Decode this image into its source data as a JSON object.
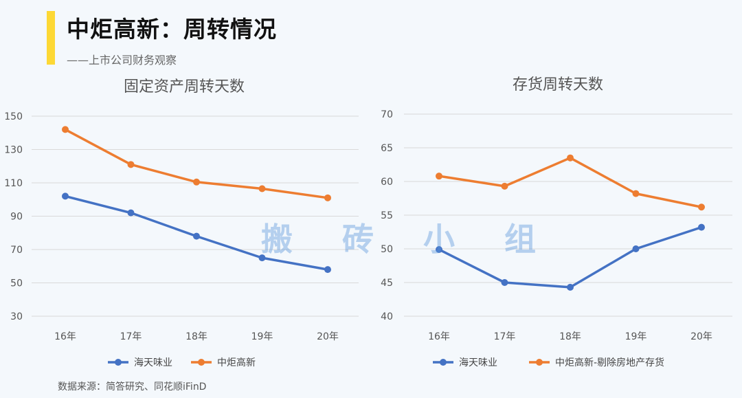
{
  "header": {
    "title": "中炬高新：周转情况",
    "subtitle": "——上市公司财务观察"
  },
  "watermark": "搬 砖 小 组",
  "source": "数据来源：简答研究、同花顺iFinD",
  "colors": {
    "blue": "#4472c4",
    "orange": "#ed7d31",
    "accent": "#fdd835"
  },
  "chart_data": [
    {
      "type": "line",
      "title": "固定资产周转天数",
      "categories": [
        "16年",
        "17年",
        "18年",
        "19年",
        "20年"
      ],
      "ylim": [
        30,
        150
      ],
      "yticks": [
        "150",
        "130",
        "110",
        "90",
        "70",
        "50",
        "30"
      ],
      "legend_position": "bottom",
      "grid": true,
      "series": [
        {
          "name": "海天味业",
          "color": "#4472c4",
          "values": [
            102,
            92,
            78,
            65,
            58
          ]
        },
        {
          "name": "中炬高新",
          "color": "#ed7d31",
          "values": [
            142,
            121,
            110.5,
            106.5,
            101
          ]
        }
      ]
    },
    {
      "type": "line",
      "title": "存货周转天数",
      "categories": [
        "16年",
        "17年",
        "18年",
        "19年",
        "20年"
      ],
      "ylim": [
        40,
        70
      ],
      "yticks": [
        "70",
        "65",
        "60",
        "55",
        "50",
        "45",
        "40"
      ],
      "legend_position": "bottom",
      "grid": true,
      "series": [
        {
          "name": "海天味业",
          "color": "#4472c4",
          "values": [
            49.9,
            45,
            44.3,
            50,
            53.2
          ]
        },
        {
          "name": "中炬高新-剔除房地产存货",
          "color": "#ed7d31",
          "values": [
            60.8,
            59.3,
            63.5,
            58.2,
            56.2
          ]
        }
      ]
    }
  ]
}
